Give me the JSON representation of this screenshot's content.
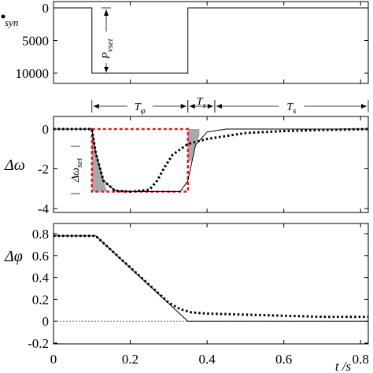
{
  "chart_data": [
    {
      "type": "line",
      "panel": "top",
      "ylabel": "syn",
      "x_range": [
        0,
        0.82
      ],
      "ylim": [
        -10000,
        0
      ],
      "yticks": [
        0,
        -5000,
        -10000
      ],
      "ytick_labels": [
        "0",
        "5000",
        "10000"
      ],
      "series": [
        {
          "style": "solid",
          "x": [
            0,
            0.1,
            0.1,
            0.35,
            0.35,
            0.82
          ],
          "y": [
            0,
            0,
            -10000,
            -10000,
            0,
            0
          ]
        }
      ],
      "annotations": [
        {
          "text": "P",
          "subscript": "vset",
          "x1": 0.125,
          "y1": 0,
          "x2": 0.125,
          "y2": -10000
        }
      ]
    },
    {
      "type": "line",
      "panel": "middle",
      "ylabel": "Δω",
      "x_range": [
        0,
        0.82
      ],
      "ylim": [
        -4,
        0.2
      ],
      "yticks": [
        0,
        -2,
        -4
      ],
      "ytick_labels": [
        "0",
        "-2",
        "-4"
      ],
      "series": [
        {
          "style": "solid",
          "x": [
            0,
            0.1,
            0.11,
            0.13,
            0.16,
            0.2,
            0.33,
            0.35,
            0.37,
            0.4,
            0.45,
            0.82
          ],
          "y": [
            0,
            0,
            -1.2,
            -2.6,
            -3.1,
            -3.15,
            -3.15,
            -2.6,
            -0.8,
            -0.15,
            0,
            0
          ]
        },
        {
          "style": "dotted",
          "x": [
            0,
            0.1,
            0.11,
            0.13,
            0.16,
            0.2,
            0.25,
            0.27,
            0.29,
            0.31,
            0.35,
            0.4,
            0.5,
            0.6,
            0.7,
            0.82
          ],
          "y": [
            0,
            0,
            -1.2,
            -2.6,
            -3.1,
            -3.15,
            -3.05,
            -2.6,
            -1.9,
            -1.3,
            -0.75,
            -0.5,
            -0.2,
            -0.1,
            -0.05,
            0
          ]
        }
      ],
      "box": {
        "x": [
          0.1,
          0.35
        ],
        "y": [
          -3.15,
          0
        ]
      },
      "annotations": [
        {
          "text": "T",
          "subscript": "φ",
          "x1": 0.1,
          "x2": 0.35
        },
        {
          "text": "T",
          "subscript": "s",
          "x1": 0.35,
          "x2": 0.42
        },
        {
          "text": "T",
          "subscript": "s",
          "x1": 0.42,
          "x2": 0.82
        },
        {
          "text": "Δω",
          "subscript": "set",
          "x1": 0.06,
          "y1": -1.05,
          "x2": 0.06,
          "y2": -4
        }
      ]
    },
    {
      "type": "line",
      "panel": "bottom",
      "ylabel": "Δφ",
      "xlabel": "t /s",
      "x_range": [
        0,
        0.82
      ],
      "ylim": [
        -0.2,
        0.9
      ],
      "yticks": [
        0.8,
        0.6,
        0.4,
        0.2,
        0,
        -0.2
      ],
      "ytick_labels": [
        "0.8",
        "0.6",
        "0.4",
        "0.2",
        "0",
        "-0.2"
      ],
      "xticks": [
        0,
        0.2,
        0.4,
        0.6,
        0.8
      ],
      "xtick_labels": [
        "0",
        "0.2",
        "0.4",
        "0.6",
        "0.8"
      ],
      "series": [
        {
          "style": "solid",
          "x": [
            0,
            0.11,
            0.35,
            0.82
          ],
          "y": [
            0.78,
            0.78,
            0,
            0
          ]
        },
        {
          "style": "dotted",
          "x": [
            0,
            0.11,
            0.3,
            0.33,
            0.36,
            0.4,
            0.5,
            0.6,
            0.7,
            0.82
          ],
          "y": [
            0.78,
            0.78,
            0.17,
            0.11,
            0.08,
            0.07,
            0.06,
            0.05,
            0.04,
            0.04
          ]
        },
        {
          "style": "thin-dotted",
          "x": [
            0,
            0.82
          ],
          "y": [
            0,
            0
          ]
        }
      ]
    }
  ]
}
